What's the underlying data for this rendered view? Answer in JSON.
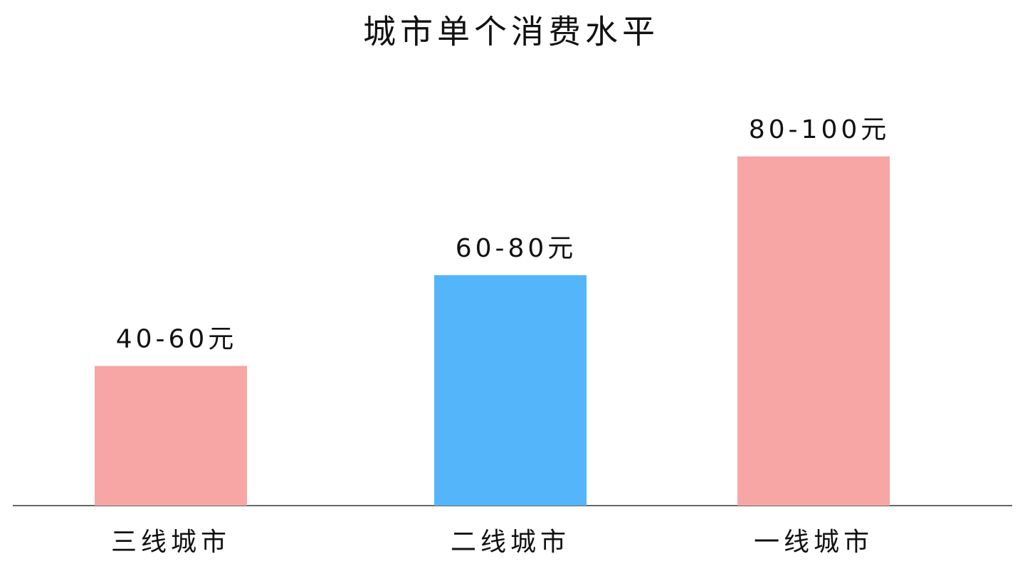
{
  "chart_data": {
    "type": "bar",
    "title": "城市单个消费水平",
    "categories": [
      "三线城市",
      "二线城市",
      "一线城市"
    ],
    "values": [
      40,
      66,
      100
    ],
    "value_labels": [
      "40-60元",
      "60-80元",
      "80-100元"
    ],
    "colors": [
      "#f8a5a5",
      "#55b5fa",
      "#f8a5a5"
    ],
    "ylim": [
      0,
      100
    ]
  }
}
